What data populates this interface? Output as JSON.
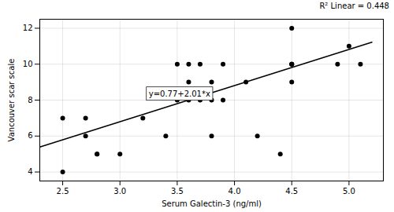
{
  "chart_data": {
    "type": "scatter",
    "xlabel": "Serum Galectin-3 (ng/ml)",
    "ylabel": "Vancouver scar scale",
    "series": [
      {
        "type": "scatter",
        "x": [
          2.5,
          2.5,
          2.7,
          2.7,
          2.8,
          2.8,
          3.0,
          3.2,
          3.4,
          3.5,
          3.5,
          3.6,
          3.6,
          3.6,
          3.7,
          3.7,
          3.8,
          3.8,
          3.8,
          3.9,
          3.9,
          4.1,
          4.2,
          4.4,
          4.5,
          4.5,
          4.5,
          4.5,
          4.5,
          4.9,
          5.0,
          5.1
        ],
        "values": [
          4,
          7,
          6,
          7,
          5,
          5,
          5,
          7,
          6,
          10,
          8,
          9,
          10,
          8,
          10,
          8,
          9,
          6,
          8,
          10,
          8,
          9,
          6,
          5,
          12,
          10,
          10,
          9,
          10,
          10,
          11,
          10
        ]
      },
      {
        "type": "line",
        "x": [
          2.3,
          5.2
        ],
        "values": [
          5.393,
          11.222
        ]
      }
    ],
    "annotations": [
      {
        "text": "y=0.77+2.01*x",
        "x": 3.52,
        "y": 8.35
      },
      {
        "text": "R² Linear = 0.448"
      }
    ],
    "xlim": [
      2.3,
      5.3
    ],
    "ylim": [
      3.5,
      12.5
    ],
    "xticks": [
      2.5,
      {
        "value": 3,
        "label": "3.0"
      },
      3.5,
      {
        "value": 4,
        "label": "4.0"
      },
      4.5,
      {
        "value": 5,
        "label": "5.0"
      }
    ],
    "yticks": [
      4,
      6,
      8,
      10,
      12
    ],
    "grid": true
  }
}
